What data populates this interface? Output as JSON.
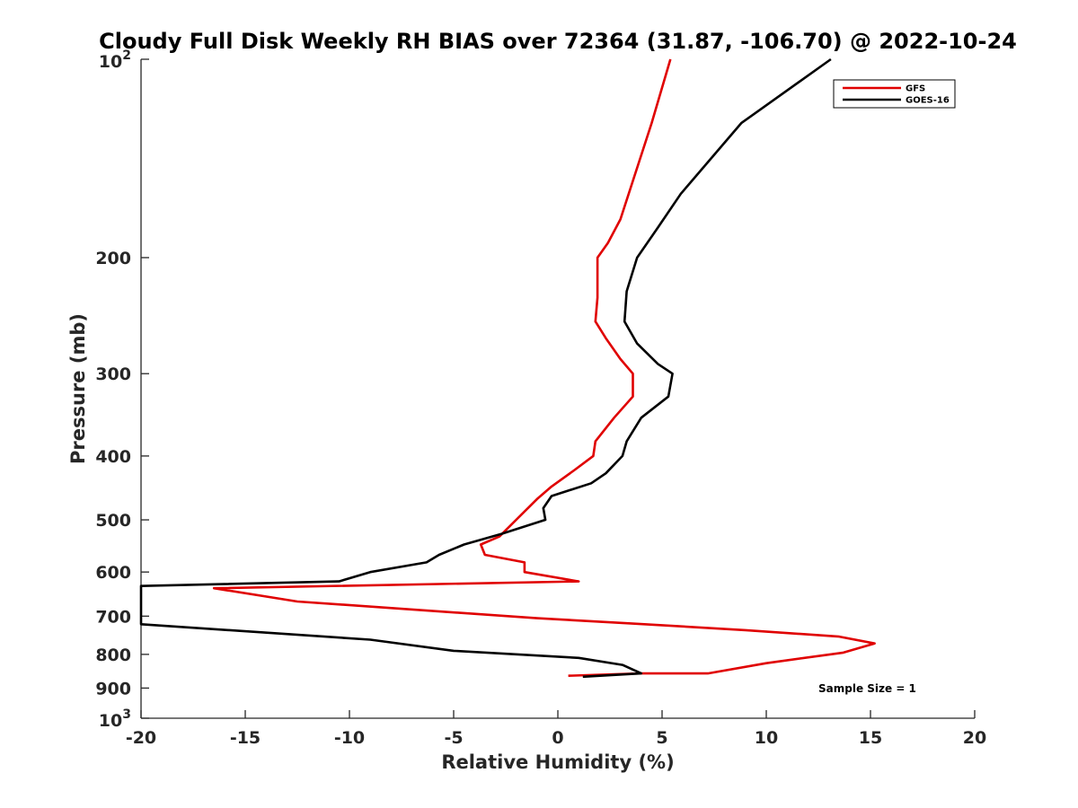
{
  "chart_data": {
    "type": "line",
    "title": "Cloudy Full Disk Weekly RH BIAS over 72364 (31.87, -106.70) @ 2022-10-24",
    "xlabel": "Relative Humidity (%)",
    "ylabel": "Pressure (mb)",
    "xlim": [
      -20,
      20
    ],
    "ylim": [
      100,
      1000
    ],
    "y_scale": "log",
    "y_reversed": true,
    "grid": false,
    "legend_position": "top-right",
    "annotation": "Sample Size = 1",
    "x_ticks": [
      {
        "value": -20,
        "label": "-20"
      },
      {
        "value": -15,
        "label": "-15"
      },
      {
        "value": -10,
        "label": "-10"
      },
      {
        "value": -5,
        "label": "-5"
      },
      {
        "value": 0,
        "label": "0"
      },
      {
        "value": 5,
        "label": "5"
      },
      {
        "value": 10,
        "label": "10"
      },
      {
        "value": 15,
        "label": "15"
      },
      {
        "value": 20,
        "label": "20"
      }
    ],
    "y_ticks": [
      {
        "value": 200,
        "label": "200"
      },
      {
        "value": 300,
        "label": "300"
      },
      {
        "value": 400,
        "label": "400"
      },
      {
        "value": 500,
        "label": "500"
      },
      {
        "value": 600,
        "label": "600"
      },
      {
        "value": 700,
        "label": "700"
      },
      {
        "value": 800,
        "label": "800"
      },
      {
        "value": 900,
        "label": "900"
      }
    ],
    "y_ticks_power": [
      {
        "value": 100,
        "base": "10",
        "exp": "2"
      },
      {
        "value": 1000,
        "base": "10",
        "exp": "3"
      }
    ],
    "series": [
      {
        "name": "GFS",
        "color": "#e00000",
        "points": [
          [
            5.4,
            100
          ],
          [
            4.5,
            125
          ],
          [
            3.0,
            175
          ],
          [
            2.4,
            190
          ],
          [
            1.9,
            200
          ],
          [
            1.9,
            230
          ],
          [
            1.8,
            250
          ],
          [
            2.3,
            265
          ],
          [
            3.0,
            285
          ],
          [
            3.6,
            300
          ],
          [
            3.6,
            325
          ],
          [
            2.7,
            350
          ],
          [
            1.8,
            380
          ],
          [
            1.7,
            400
          ],
          [
            0.8,
            420
          ],
          [
            -0.3,
            445
          ],
          [
            -1.0,
            465
          ],
          [
            -2.0,
            500
          ],
          [
            -2.8,
            530
          ],
          [
            -3.7,
            545
          ],
          [
            -3.5,
            565
          ],
          [
            -1.6,
            580
          ],
          [
            -1.6,
            600
          ],
          [
            1.0,
            620
          ],
          [
            -16.5,
            635
          ],
          [
            -12.5,
            665
          ],
          [
            -1.0,
            705
          ],
          [
            3.5,
            718
          ],
          [
            9.0,
            735
          ],
          [
            13.5,
            752
          ],
          [
            15.2,
            770
          ],
          [
            13.7,
            795
          ],
          [
            10.0,
            825
          ],
          [
            7.2,
            855
          ],
          [
            4.0,
            855
          ],
          [
            0.5,
            862
          ]
        ]
      },
      {
        "name": "GOES-16",
        "color": "#000000",
        "points": [
          [
            13.1,
            100
          ],
          [
            8.8,
            125
          ],
          [
            5.9,
            160
          ],
          [
            4.8,
            180
          ],
          [
            3.8,
            200
          ],
          [
            3.3,
            225
          ],
          [
            3.2,
            250
          ],
          [
            3.8,
            270
          ],
          [
            4.8,
            290
          ],
          [
            5.5,
            300
          ],
          [
            5.3,
            325
          ],
          [
            4.0,
            350
          ],
          [
            3.3,
            380
          ],
          [
            3.1,
            400
          ],
          [
            2.3,
            425
          ],
          [
            1.6,
            440
          ],
          [
            -0.3,
            460
          ],
          [
            -0.7,
            480
          ],
          [
            -0.6,
            500
          ],
          [
            -2.7,
            525
          ],
          [
            -4.5,
            545
          ],
          [
            -5.7,
            565
          ],
          [
            -6.3,
            580
          ],
          [
            -9.0,
            600
          ],
          [
            -10.5,
            620
          ],
          [
            -20.0,
            630
          ],
          [
            -20.0,
            720
          ],
          [
            -9.0,
            760
          ],
          [
            -5.0,
            790
          ],
          [
            1.0,
            810
          ],
          [
            3.1,
            830
          ],
          [
            4.0,
            855
          ],
          [
            1.2,
            865
          ]
        ]
      }
    ]
  }
}
